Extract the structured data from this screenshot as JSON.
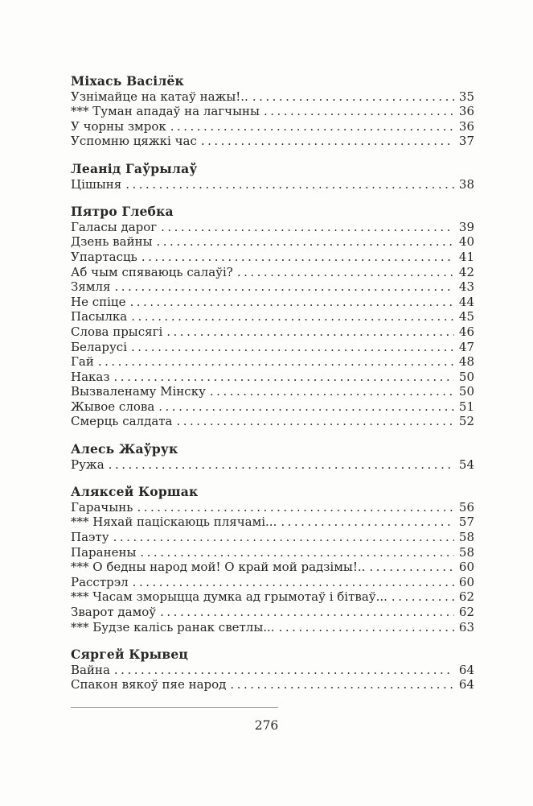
{
  "page": {
    "background_color": "#fdfdfc",
    "text_color": "#272727",
    "footer": {
      "page_number": "276"
    }
  },
  "toc": {
    "sections": [
      {
        "author": "Міхась Васілёк",
        "entries": [
          {
            "title": "Узнімайце на катаў нажы!..",
            "page": "35"
          },
          {
            "title": "*** Туман ападаў на лагчыны",
            "page": "36"
          },
          {
            "title": "У чорны змрок",
            "page": "36"
          },
          {
            "title": "Успомню цяжкі час",
            "page": "37"
          }
        ]
      },
      {
        "author": "Леанід Гаўрылаў",
        "entries": [
          {
            "title": "Цішыня",
            "page": "38"
          }
        ]
      },
      {
        "author": "Пятро Глебка",
        "entries": [
          {
            "title": "Галасы дарог",
            "page": "39"
          },
          {
            "title": "Дзень вайны",
            "page": "40"
          },
          {
            "title": "Упартасць",
            "page": "41"
          },
          {
            "title": "Аб чым спяваюць салаўі?",
            "page": "42"
          },
          {
            "title": "Зямля",
            "page": "43"
          },
          {
            "title": "Не спіце",
            "page": "44"
          },
          {
            "title": "Пасылка",
            "page": "45"
          },
          {
            "title": "Слова прысягі",
            "page": "46"
          },
          {
            "title": "Беларусі",
            "page": "47"
          },
          {
            "title": "Гай",
            "page": "48"
          },
          {
            "title": "Наказ",
            "page": "50"
          },
          {
            "title": "Вызваленаму Мінску",
            "page": "50"
          },
          {
            "title": "Жывое слова",
            "page": "51"
          },
          {
            "title": "Смерць салдата",
            "page": "52"
          }
        ]
      },
      {
        "author": "Алесь Жаўрук",
        "entries": [
          {
            "title": "Ружа",
            "page": "54"
          }
        ]
      },
      {
        "author": "Аляксей Коршак",
        "entries": [
          {
            "title": "Гарачынь",
            "page": "56"
          },
          {
            "title": "*** Няхай паціскаюць плячамі...",
            "page": "57"
          },
          {
            "title": "Паэту",
            "page": "58"
          },
          {
            "title": "Паранены",
            "page": "58"
          },
          {
            "title": "*** О бедны народ мой! О край мой радзімы!..",
            "page": "60"
          },
          {
            "title": "Расстрэл",
            "page": "60"
          },
          {
            "title": "*** Часам зморыцца думка ад грымотаў і бітваў...",
            "page": "62"
          },
          {
            "title": "Зварот дамоў",
            "page": "62"
          },
          {
            "title": "*** Будзе калісь ранак светлы...",
            "page": "63"
          }
        ]
      },
      {
        "author": "Сяргей Крывец",
        "entries": [
          {
            "title": "Вайна",
            "page": "64"
          },
          {
            "title": "Спакон вякоў пяе народ",
            "page": "64"
          }
        ]
      }
    ]
  }
}
